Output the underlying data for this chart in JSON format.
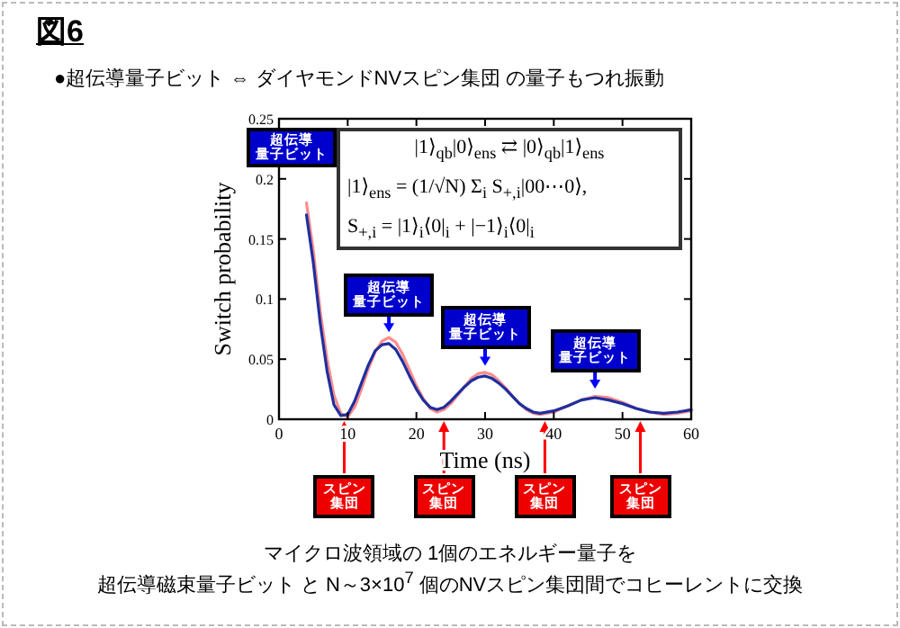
{
  "chart_data": {
    "type": "line",
    "title": "図6",
    "subtitle": "●超伝導量子ビット ⇔ ダイヤモンドNVスピン集団 の量子もつれ振動",
    "xlabel": "Time (ns)",
    "ylabel": "Switch probability",
    "xlim": [
      0,
      60
    ],
    "ylim": [
      0,
      0.25
    ],
    "xticks": [
      0,
      10,
      20,
      30,
      40,
      50,
      60
    ],
    "yticks": [
      0,
      0.05,
      0.1,
      0.15,
      0.2,
      0.25
    ],
    "grid": false,
    "series": [
      {
        "color": "#ff8c8c",
        "x": [
          4,
          5,
          6,
          7,
          8,
          9,
          10,
          11,
          12,
          13,
          14,
          15,
          16,
          17,
          18,
          19,
          20,
          21,
          22,
          23,
          24,
          25,
          26,
          27,
          28,
          29,
          30,
          31,
          32,
          33,
          34,
          35,
          36,
          37,
          38,
          40,
          42,
          44,
          46,
          48,
          50,
          52,
          54,
          56,
          58,
          60
        ],
        "values": [
          0.18,
          0.14,
          0.09,
          0.05,
          0.02,
          0.005,
          0.002,
          0.01,
          0.025,
          0.042,
          0.056,
          0.065,
          0.068,
          0.064,
          0.054,
          0.041,
          0.028,
          0.017,
          0.009,
          0.006,
          0.008,
          0.013,
          0.02,
          0.027,
          0.034,
          0.038,
          0.039,
          0.037,
          0.032,
          0.026,
          0.019,
          0.013,
          0.008,
          0.005,
          0.004,
          0.006,
          0.011,
          0.016,
          0.019,
          0.018,
          0.014,
          0.009,
          0.006,
          0.004,
          0.005,
          0.007
        ]
      },
      {
        "color": "#1f2f9f",
        "x": [
          4,
          5,
          6,
          7,
          8,
          9,
          10,
          11,
          12,
          13,
          14,
          15,
          16,
          17,
          18,
          19,
          20,
          21,
          22,
          23,
          24,
          25,
          26,
          27,
          28,
          29,
          30,
          31,
          32,
          33,
          34,
          35,
          36,
          37,
          38,
          40,
          42,
          44,
          46,
          48,
          50,
          52,
          54,
          56,
          58,
          60
        ],
        "values": [
          0.17,
          0.13,
          0.08,
          0.04,
          0.012,
          0.003,
          0.004,
          0.015,
          0.03,
          0.045,
          0.057,
          0.062,
          0.063,
          0.058,
          0.048,
          0.036,
          0.025,
          0.016,
          0.01,
          0.008,
          0.01,
          0.015,
          0.021,
          0.027,
          0.032,
          0.035,
          0.036,
          0.034,
          0.03,
          0.025,
          0.019,
          0.013,
          0.009,
          0.006,
          0.005,
          0.007,
          0.011,
          0.016,
          0.018,
          0.016,
          0.013,
          0.009,
          0.006,
          0.005,
          0.006,
          0.008
        ]
      }
    ],
    "annotations": [
      "超伝導量子ビット",
      "|1⟩$_{qb}$|0⟩$_{ens}$ ⇄ |0⟩$_{qb}$|1⟩$_{ens}$",
      "|1⟩$_{ens}$ = (1/√N) Σ$_{i}$ S$_{+,i}$|00⋯0⟩,",
      "S$_{+,i}$ = |1⟩$_{i}$⟨0|$_{i}$ + |−1⟩$_{i}$⟨0|$_{i}$",
      {
        "text": "超伝導量子ビット",
        "x": 16,
        "y": 0.065
      },
      {
        "text": "超伝導量子ビット",
        "x": 30,
        "y": 0.037
      },
      {
        "text": "超伝導量子ビット",
        "x": 46,
        "y": 0.018
      },
      {
        "text": "スピン集団",
        "x": 9.5,
        "y": 0
      },
      {
        "text": "スピン集団",
        "x": 24,
        "y": 0
      },
      {
        "text": "スピン集団",
        "x": 38.7,
        "y": 0
      },
      {
        "text": "スピン集団",
        "x": 52.6,
        "y": 0
      },
      "マイクロ波領域の 1個のエネルギー量子を",
      "超伝導磁束量子ビット と N～3×10$^{7}$ 個のNVスピン集団間でコヒーレントに交換"
    ]
  }
}
